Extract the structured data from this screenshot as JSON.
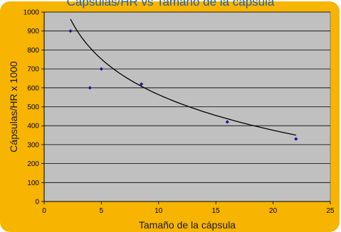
{
  "chart_data": {
    "type": "scatter",
    "title": "Cápsulas/HR vs Tamaño de la cápsula",
    "xlabel": "Tamaño de la cápsula",
    "ylabel": "Cápsulas/HR x 1000",
    "xlim": [
      0,
      25
    ],
    "ylim": [
      0,
      1000
    ],
    "xticks": [
      0,
      5,
      10,
      15,
      20,
      25
    ],
    "yticks": [
      0,
      100,
      200,
      300,
      400,
      500,
      600,
      700,
      800,
      900,
      1000
    ],
    "grid": true,
    "legend": "none",
    "points": [
      {
        "x": 2.3,
        "y": 900
      },
      {
        "x": 4,
        "y": 600
      },
      {
        "x": 5,
        "y": 700
      },
      {
        "x": 8.5,
        "y": 620
      },
      {
        "x": 16,
        "y": 420
      },
      {
        "x": 22,
        "y": 330
      }
    ],
    "trendline": {
      "type": "logarithmic",
      "x_range": [
        2.3,
        22
      ],
      "a": 1188,
      "b": -271
    },
    "colors": {
      "background": "#f7b400",
      "plot_area": "#c0c0c0",
      "marker": "#1a1a8c",
      "trendline": "#000000",
      "title": "#2060a8"
    }
  }
}
